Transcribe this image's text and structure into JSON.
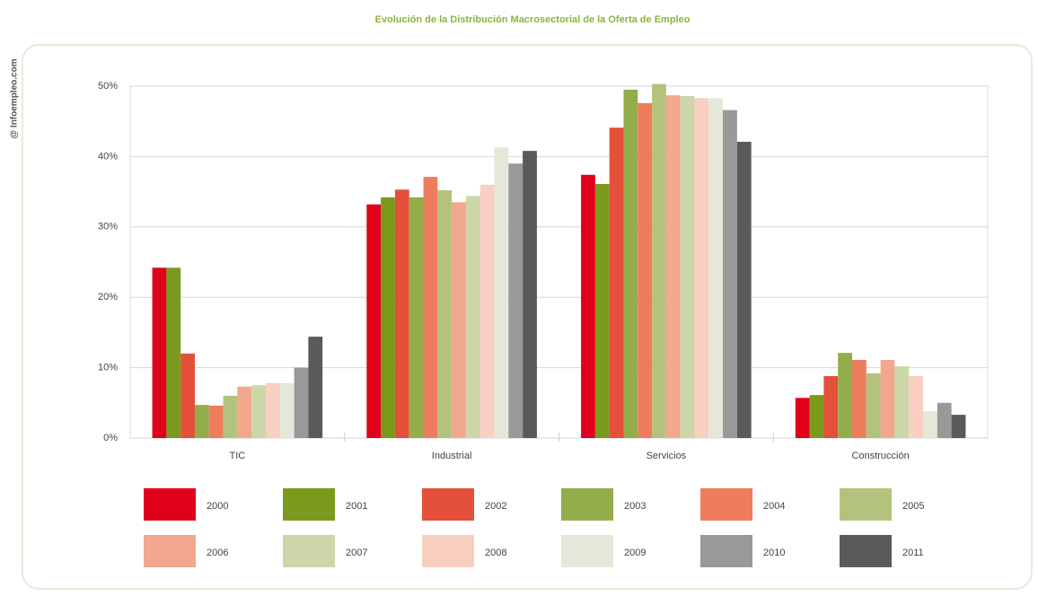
{
  "chart_data": {
    "type": "bar",
    "title": "Evolución de la Distribución Macrosectorial de la Oferta de Empleo",
    "source": "@ Infoempleo.com",
    "categories": [
      "TIC",
      "Industrial",
      "Servicios",
      "Construcción"
    ],
    "series": [
      {
        "name": "2000",
        "color": "#e0001b",
        "values": [
          24.2,
          33.2,
          37.4,
          5.7
        ]
      },
      {
        "name": "2001",
        "color": "#7a9a1e",
        "values": [
          24.2,
          34.2,
          36.1,
          6.1
        ]
      },
      {
        "name": "2002",
        "color": "#e4503a",
        "values": [
          12,
          35.3,
          44.1,
          8.8
        ]
      },
      {
        "name": "2003",
        "color": "#93ad4a",
        "values": [
          4.7,
          34.2,
          49.5,
          12.1
        ]
      },
      {
        "name": "2004",
        "color": "#ee7d5d",
        "values": [
          4.6,
          37.1,
          47.6,
          11.1
        ]
      },
      {
        "name": "2005",
        "color": "#b3c37e",
        "values": [
          6,
          35.2,
          50.3,
          9.2
        ]
      },
      {
        "name": "2006",
        "color": "#f2a78f",
        "values": [
          7.3,
          33.5,
          48.7,
          11.1
        ]
      },
      {
        "name": "2007",
        "color": "#ccd6a9",
        "values": [
          7.5,
          34.4,
          48.6,
          10.2
        ]
      },
      {
        "name": "2008",
        "color": "#f8cfc0",
        "values": [
          7.8,
          36,
          48.3,
          8.8
        ]
      },
      {
        "name": "2009",
        "color": "#e4e8d8",
        "values": [
          7.8,
          41.3,
          48.3,
          3.8
        ]
      },
      {
        "name": "2010",
        "color": "#999999",
        "values": [
          10,
          39,
          46.6,
          5
        ]
      },
      {
        "name": "2011",
        "color": "#5a5a5a",
        "values": [
          14.4,
          40.8,
          42.1,
          3.3
        ]
      }
    ],
    "ylim": [
      0,
      50
    ],
    "yticks": [
      {
        "value": 0,
        "label": "0%"
      },
      {
        "value": 10,
        "label": "10%"
      },
      {
        "value": 20,
        "label": "20%"
      },
      {
        "value": 30,
        "label": "30%"
      },
      {
        "value": 40,
        "label": "40%"
      },
      {
        "value": 50,
        "label": "50%"
      }
    ],
    "grid": true
  }
}
